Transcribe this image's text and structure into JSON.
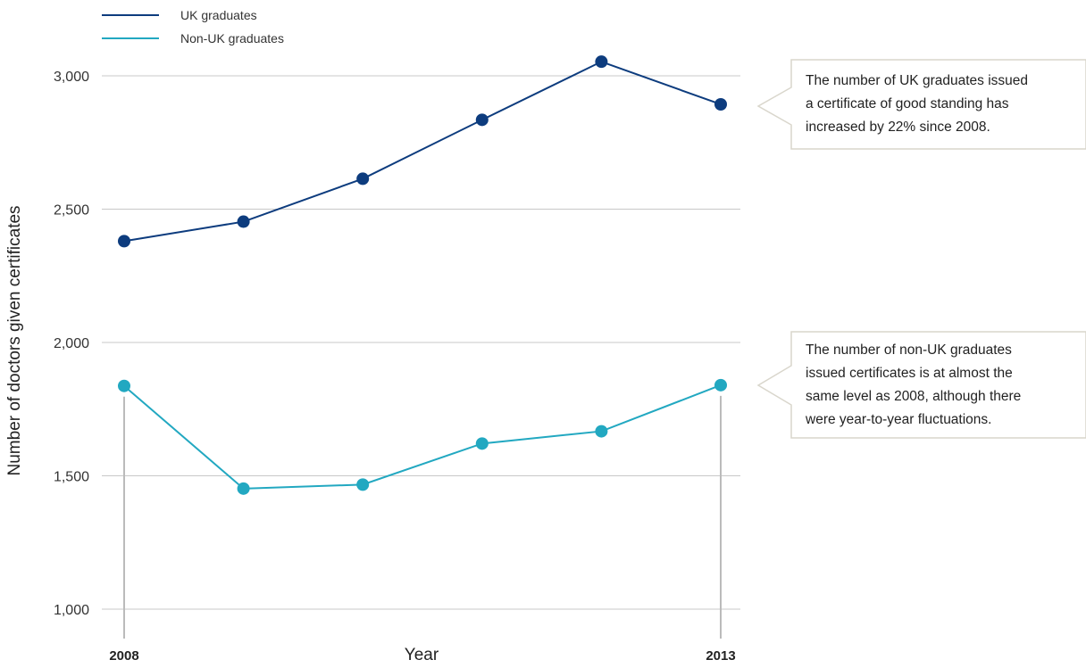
{
  "chart_data": {
    "type": "line",
    "x": [
      2008,
      2009,
      2010,
      2011,
      2012,
      2013
    ],
    "x_tick_labels": [
      "2008",
      "2013"
    ],
    "xlabel": "Year",
    "ylabel": "Number of doctors given certificates",
    "ylim": [
      1000,
      3000
    ],
    "y_ticks": [
      1000,
      1500,
      2000,
      2500,
      3000
    ],
    "y_tick_labels": [
      "1,000",
      "1,500",
      "2,000",
      "2,500",
      "3,000"
    ],
    "grid": "horizontal",
    "legend_position": "top-left",
    "series": [
      {
        "name": "UK graduates",
        "color": "#0d3c7e",
        "values": [
          2380,
          2453,
          2614,
          2835,
          3053,
          2893
        ]
      },
      {
        "name": "Non-UK graduates",
        "color": "#22a8c1",
        "values": [
          1837,
          1452,
          1467,
          1621,
          1667,
          1840
        ]
      }
    ],
    "annotations": [
      {
        "series": "UK graduates",
        "lines": [
          "The number of UK graduates issued",
          "a certificate of good standing has",
          "increased by 22% since 2008."
        ]
      },
      {
        "series": "Non-UK graduates",
        "lines": [
          "The number of non-UK graduates",
          "issued certificates is at almost the",
          "same level as 2008, although there",
          "were year-to-year fluctuations."
        ]
      }
    ]
  },
  "colors": {
    "grid": "#c8c8c8",
    "callout_border": "#d9d6cc",
    "marker_line": "#bbbbbb"
  }
}
